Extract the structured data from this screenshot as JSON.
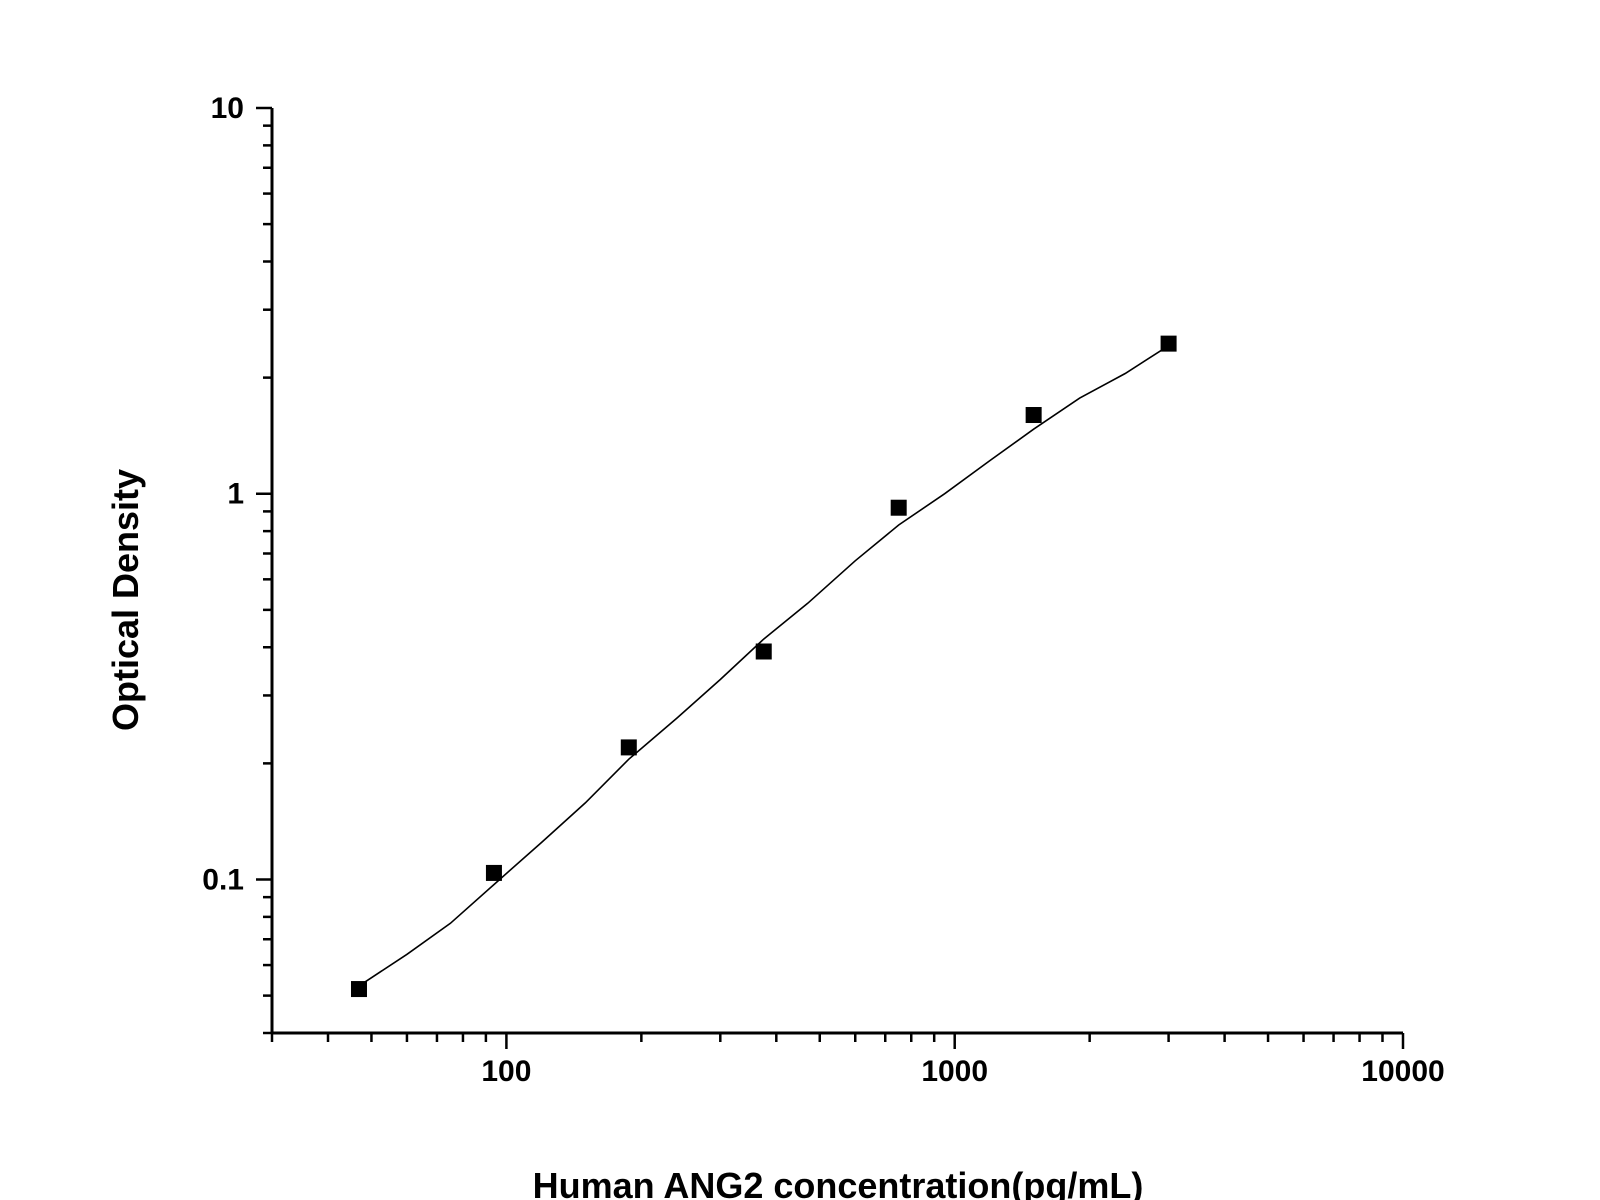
{
  "chart_data": {
    "type": "scatter",
    "title": "",
    "xlabel": "Human ANG2 concentration(pg/mL)",
    "ylabel": "Optical Density",
    "x_scale": "log",
    "y_scale": "log",
    "xlim": [
      30,
      10000
    ],
    "ylim": [
      0.04,
      10
    ],
    "x_tick_labels": [
      "100",
      "1000",
      "10000"
    ],
    "y_tick_labels": [
      "0.1",
      "1",
      "10"
    ],
    "grid": false,
    "legend": "none",
    "series": [
      {
        "marker": "square",
        "x": [
          46.9,
          93.8,
          187.5,
          375,
          750,
          1500,
          3000
        ],
        "y": [
          0.052,
          0.104,
          0.22,
          0.39,
          0.92,
          1.6,
          2.45
        ]
      }
    ],
    "fit_curve": {
      "style": "line",
      "x": [
        46.9,
        60,
        75,
        93.8,
        120,
        150,
        187.5,
        240,
        300,
        375,
        470,
        600,
        750,
        950,
        1200,
        1500,
        1900,
        2400,
        3000
      ],
      "y": [
        0.053,
        0.064,
        0.077,
        0.097,
        0.125,
        0.158,
        0.205,
        0.262,
        0.33,
        0.42,
        0.52,
        0.67,
        0.83,
        1.0,
        1.22,
        1.47,
        1.77,
        2.05,
        2.42
      ]
    }
  }
}
